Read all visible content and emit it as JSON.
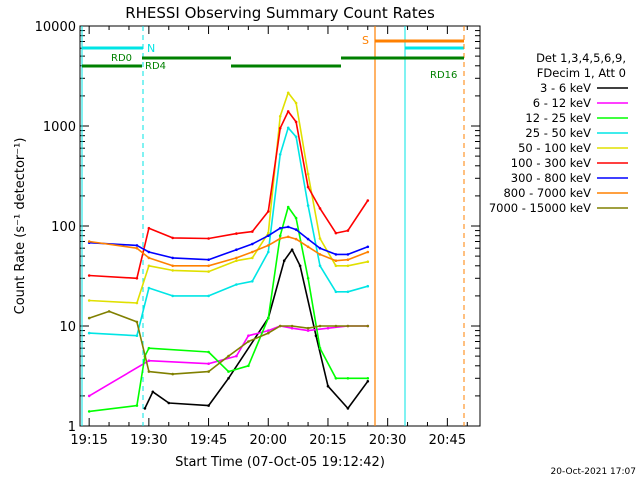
{
  "chart_data": {
    "type": "line",
    "title": "RHESSI Observing Summary Count Rates",
    "xlabel": "Start Time (07-Oct-05 19:12:42)",
    "ylabel": "Count Rate (s⁻¹ detector⁻¹)",
    "yscale": "log",
    "ylim": [
      1,
      10000
    ],
    "xlim": [
      "19:12:42",
      "20:53:12"
    ],
    "x_ticks": [
      "19:15",
      "19:30",
      "19:45",
      "20:00",
      "20:15",
      "20:30",
      "20:45"
    ],
    "y_ticks": [
      "1",
      "10",
      "100",
      "1000",
      "10000"
    ],
    "legend_position": "right",
    "legend_header": [
      "Det 1,3,4,5,6,9,",
      "FDecim 1, Att 0"
    ],
    "series": [
      {
        "name": "3 - 6 keV",
        "color": "#000000",
        "points": [
          [
            "19:29",
            1.5
          ],
          [
            "19:31",
            2.2
          ],
          [
            "19:35",
            1.7
          ],
          [
            "19:45",
            1.6
          ],
          [
            "19:50",
            3.0
          ],
          [
            "20:00",
            12
          ],
          [
            "20:04",
            45
          ],
          [
            "20:06",
            58
          ],
          [
            "20:08",
            40
          ],
          [
            "20:12",
            8
          ],
          [
            "20:15",
            2.5
          ],
          [
            "20:20",
            1.5
          ],
          [
            "20:25",
            2.8
          ]
        ]
      },
      {
        "name": "6 - 12 keV",
        "color": "#ff00ff",
        "points": [
          [
            "19:15",
            2
          ],
          [
            "19:30",
            4.5
          ],
          [
            "19:45",
            4.2
          ],
          [
            "19:52",
            5
          ],
          [
            "19:55",
            8
          ],
          [
            "20:00",
            9
          ],
          [
            "20:03",
            10
          ],
          [
            "20:06",
            9.5
          ],
          [
            "20:10",
            9
          ],
          [
            "20:15",
            9.5
          ],
          [
            "20:20",
            10
          ],
          [
            "20:25",
            10
          ]
        ]
      },
      {
        "name": "12 - 25 keV",
        "color": "#00ff00",
        "points": [
          [
            "19:15",
            1.4
          ],
          [
            "19:27",
            1.6
          ],
          [
            "19:29",
            5
          ],
          [
            "19:30",
            6
          ],
          [
            "19:45",
            5.5
          ],
          [
            "19:50",
            3.5
          ],
          [
            "19:55",
            4.0
          ],
          [
            "20:00",
            12
          ],
          [
            "20:03",
            80
          ],
          [
            "20:05",
            155
          ],
          [
            "20:07",
            120
          ],
          [
            "20:10",
            30
          ],
          [
            "20:13",
            6
          ],
          [
            "20:17",
            3
          ],
          [
            "20:20",
            3
          ],
          [
            "20:25",
            3
          ]
        ]
      },
      {
        "name": "25 - 50 keV",
        "color": "#00e5e5",
        "points": [
          [
            "19:15",
            8.5
          ],
          [
            "19:27",
            8
          ],
          [
            "19:30",
            24
          ],
          [
            "19:36",
            20
          ],
          [
            "19:45",
            20
          ],
          [
            "19:52",
            26
          ],
          [
            "19:56",
            28
          ],
          [
            "20:00",
            55
          ],
          [
            "20:03",
            520
          ],
          [
            "20:05",
            960
          ],
          [
            "20:07",
            780
          ],
          [
            "20:10",
            160
          ],
          [
            "20:13",
            40
          ],
          [
            "20:17",
            22
          ],
          [
            "20:20",
            22
          ],
          [
            "20:25",
            25
          ]
        ]
      },
      {
        "name": "50 - 100 keV",
        "color": "#e0e000",
        "points": [
          [
            "19:15",
            18
          ],
          [
            "19:27",
            17
          ],
          [
            "19:30",
            40
          ],
          [
            "19:36",
            36
          ],
          [
            "19:45",
            35
          ],
          [
            "19:52",
            45
          ],
          [
            "19:56",
            48
          ],
          [
            "20:00",
            85
          ],
          [
            "20:03",
            1250
          ],
          [
            "20:05",
            2150
          ],
          [
            "20:07",
            1700
          ],
          [
            "20:10",
            330
          ],
          [
            "20:13",
            75
          ],
          [
            "20:17",
            40
          ],
          [
            "20:20",
            40
          ],
          [
            "20:25",
            44
          ]
        ]
      },
      {
        "name": "100 - 300 keV",
        "color": "#ff0000",
        "points": [
          [
            "19:15",
            32
          ],
          [
            "19:27",
            30
          ],
          [
            "19:30",
            95
          ],
          [
            "19:36",
            76
          ],
          [
            "19:45",
            75
          ],
          [
            "19:52",
            84
          ],
          [
            "19:56",
            88
          ],
          [
            "20:00",
            140
          ],
          [
            "20:03",
            950
          ],
          [
            "20:05",
            1400
          ],
          [
            "20:07",
            1100
          ],
          [
            "20:10",
            245
          ],
          [
            "20:13",
            150
          ],
          [
            "20:17",
            85
          ],
          [
            "20:20",
            90
          ],
          [
            "20:25",
            180
          ]
        ]
      },
      {
        "name": "300 - 800 keV",
        "color": "#0000ff",
        "points": [
          [
            "19:15",
            68
          ],
          [
            "19:27",
            64
          ],
          [
            "19:30",
            55
          ],
          [
            "19:36",
            48
          ],
          [
            "19:45",
            46
          ],
          [
            "19:52",
            58
          ],
          [
            "19:56",
            66
          ],
          [
            "20:00",
            80
          ],
          [
            "20:03",
            95
          ],
          [
            "20:05",
            98
          ],
          [
            "20:07",
            92
          ],
          [
            "20:10",
            74
          ],
          [
            "20:13",
            60
          ],
          [
            "20:17",
            52
          ],
          [
            "20:20",
            52
          ],
          [
            "20:25",
            62
          ]
        ]
      },
      {
        "name": "800 - 7000 keV",
        "color": "#ff8000",
        "points": [
          [
            "19:15",
            70
          ],
          [
            "19:27",
            60
          ],
          [
            "19:30",
            48
          ],
          [
            "19:36",
            40
          ],
          [
            "19:45",
            40
          ],
          [
            "19:52",
            48
          ],
          [
            "19:56",
            55
          ],
          [
            "20:00",
            64
          ],
          [
            "20:03",
            75
          ],
          [
            "20:05",
            78
          ],
          [
            "20:07",
            74
          ],
          [
            "20:10",
            62
          ],
          [
            "20:13",
            52
          ],
          [
            "20:17",
            45
          ],
          [
            "20:20",
            46
          ],
          [
            "20:25",
            55
          ]
        ]
      },
      {
        "name": "7000 - 15000 keV",
        "color": "#808000",
        "points": [
          [
            "19:15",
            12
          ],
          [
            "19:20",
            14
          ],
          [
            "19:27",
            11
          ],
          [
            "19:30",
            3.5
          ],
          [
            "19:36",
            3.3
          ],
          [
            "19:45",
            3.5
          ],
          [
            "19:50",
            5
          ],
          [
            "19:55",
            7
          ],
          [
            "20:00",
            8.5
          ],
          [
            "20:03",
            10
          ],
          [
            "20:06",
            10
          ],
          [
            "20:10",
            9.5
          ],
          [
            "20:13",
            10
          ],
          [
            "20:17",
            10
          ],
          [
            "20:20",
            10
          ],
          [
            "20:25",
            10
          ]
        ]
      }
    ],
    "state_markers": [
      {
        "label": "N",
        "color": "#00e5e5"
      },
      {
        "label": "S",
        "color": "#ff8000"
      }
    ],
    "decimation_labels": [
      {
        "label": "RD0",
        "color": "#008000"
      },
      {
        "label": "RD4",
        "color": "#008000"
      },
      {
        "label": "RD16",
        "color": "#008000"
      }
    ],
    "footer_date": "20-Oct-2021 17:07"
  }
}
